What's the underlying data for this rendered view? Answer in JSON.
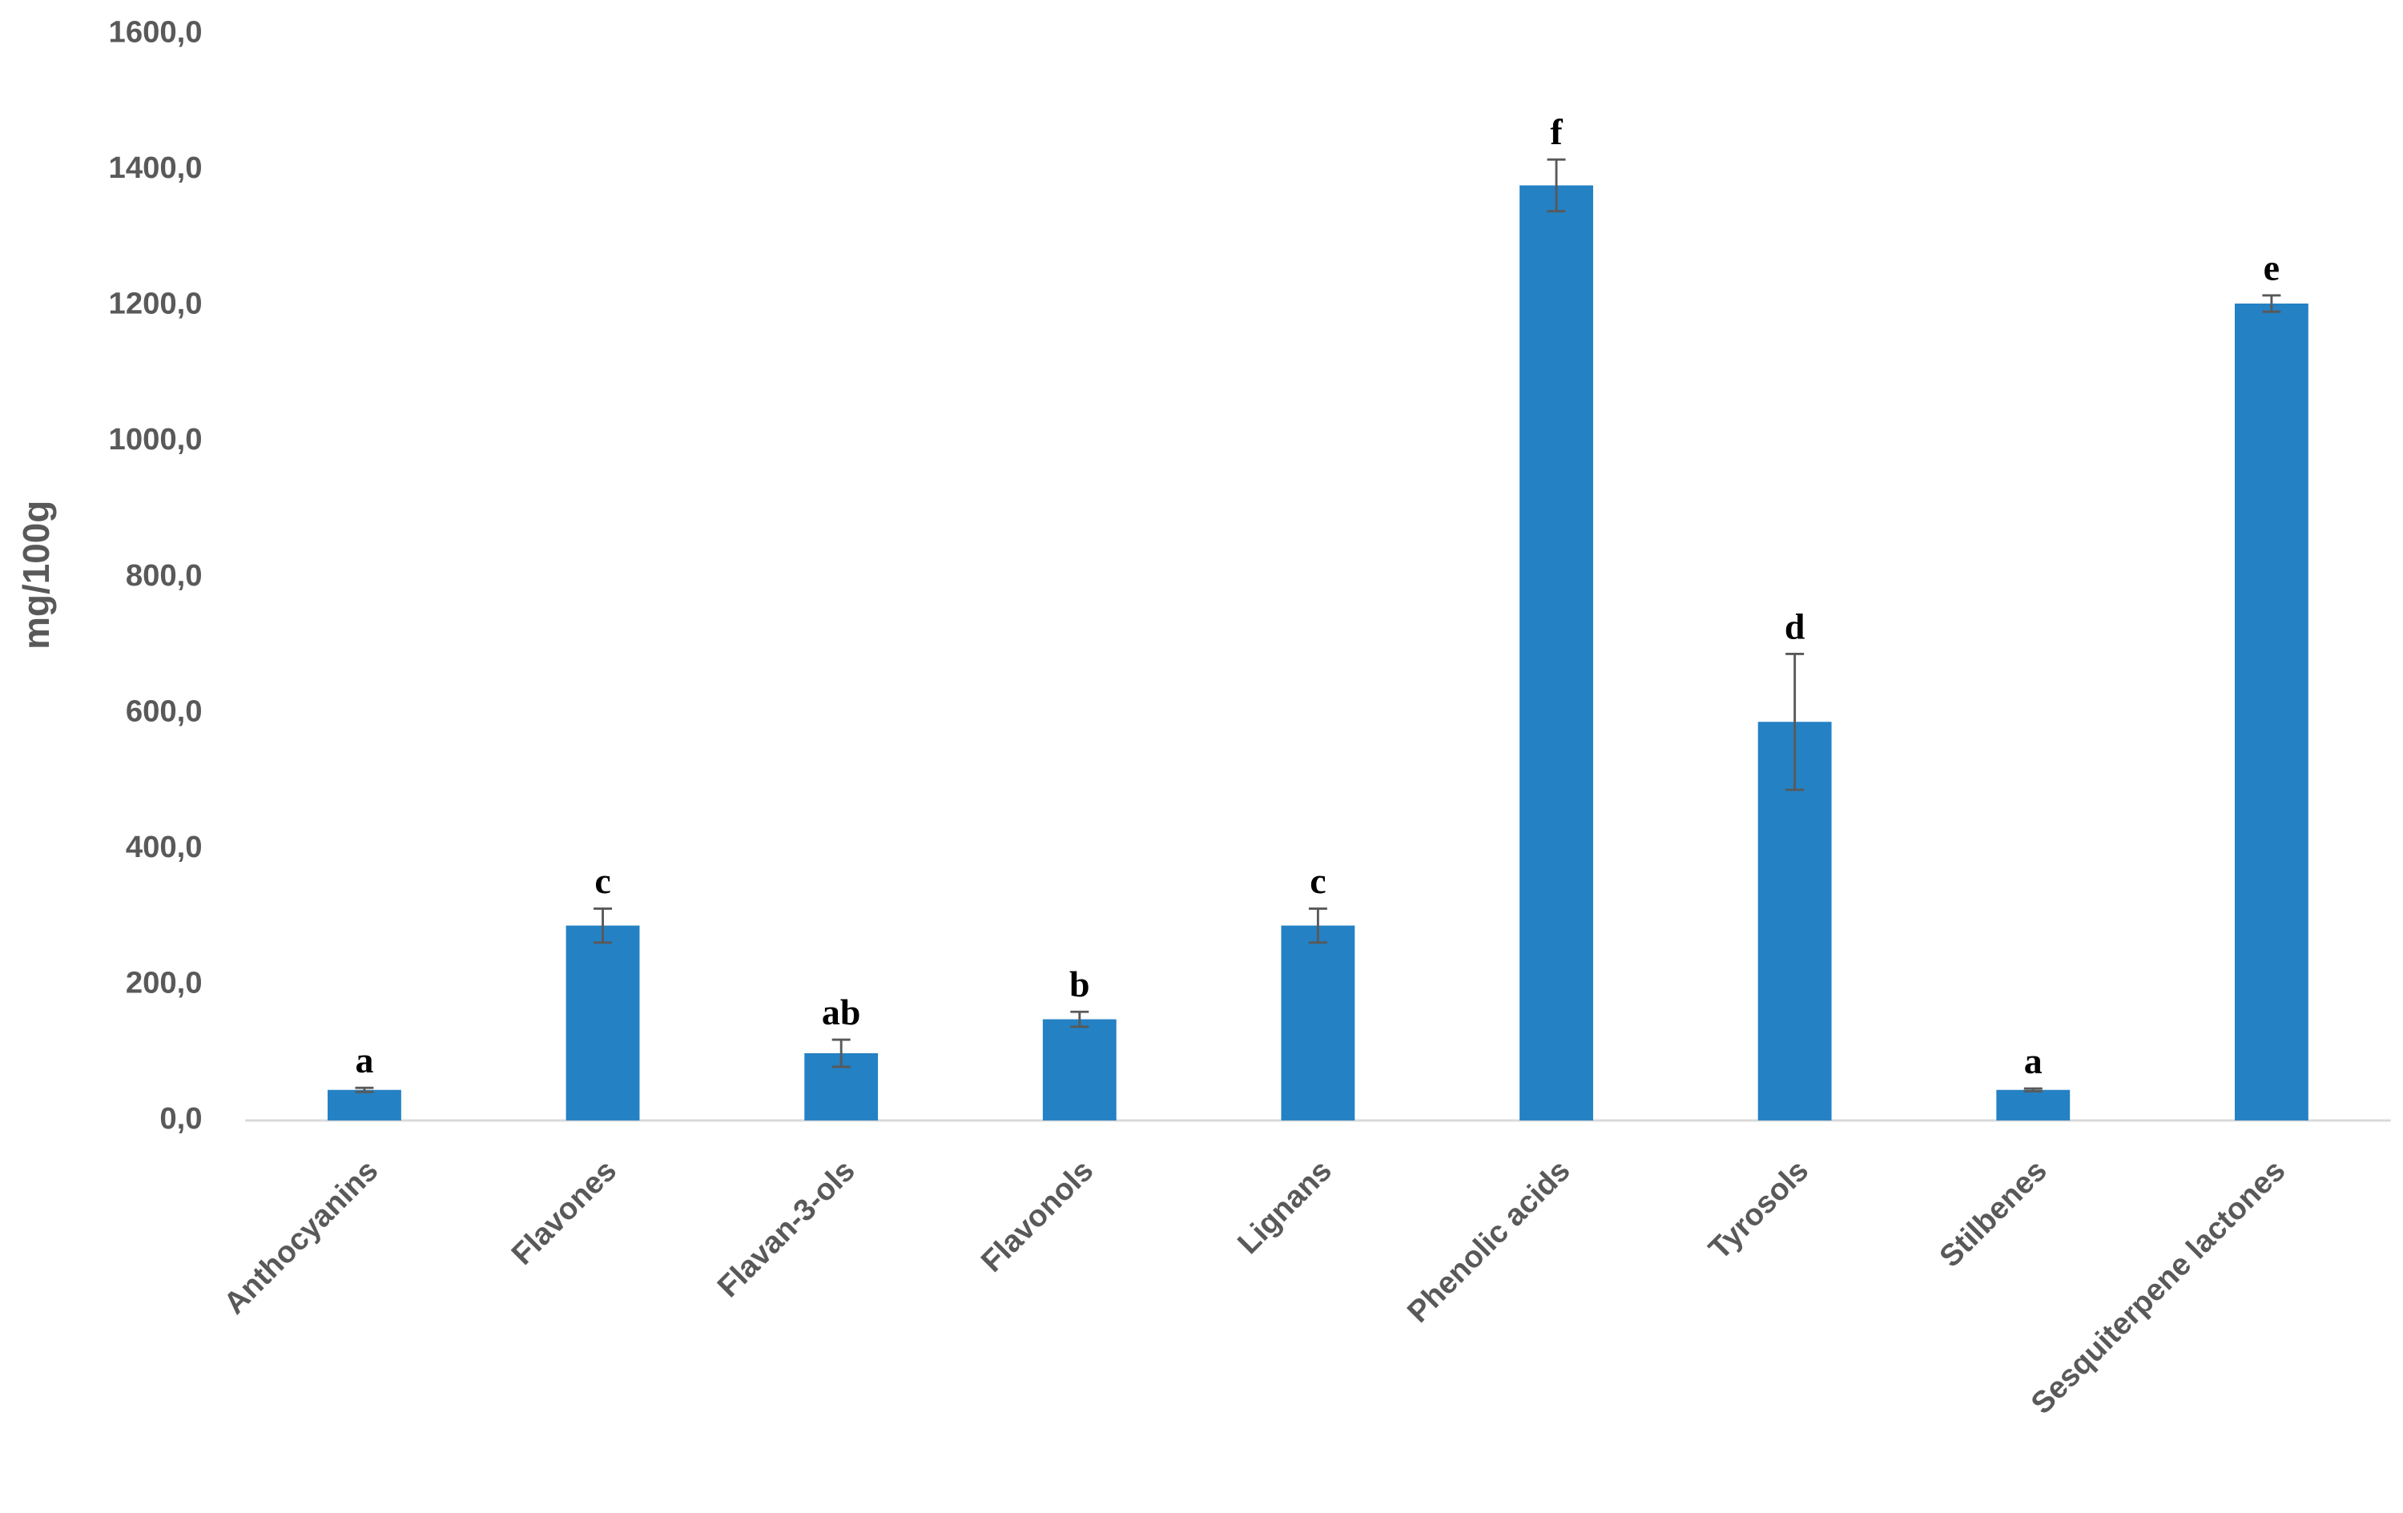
{
  "chart_data": {
    "type": "bar",
    "y_label": "mg/100g",
    "categories": [
      "Anthocyanins",
      "Flavones",
      "Flavan-3-ols",
      "Flavonols",
      "Lignans",
      "Phenolic acids",
      "Tyrosols",
      "Stilbenes",
      "Sesquiterpene lactones"
    ],
    "values": [
      45,
      287,
      99,
      149,
      287,
      1377,
      587,
      45,
      1203
    ],
    "errors": [
      3,
      25,
      20,
      11,
      25,
      38,
      100,
      2,
      12
    ],
    "letters": [
      "a",
      "c",
      "ab",
      "b",
      "c",
      "f",
      "d",
      "a",
      "e"
    ],
    "color": "#2481c4",
    "ylim": [
      0,
      1600
    ],
    "yticks": [
      {
        "value": 0,
        "label": "0,0"
      },
      {
        "value": 200,
        "label": "200,0"
      },
      {
        "value": 400,
        "label": "400,0"
      },
      {
        "value": 600,
        "label": "600,0"
      },
      {
        "value": 800,
        "label": "800,0"
      },
      {
        "value": 1000,
        "label": "1000,0"
      },
      {
        "value": 1200,
        "label": "1200,0"
      },
      {
        "value": 1400,
        "label": "1400,0"
      },
      {
        "value": 1600,
        "label": "1600,0"
      }
    ],
    "grid": false
  }
}
